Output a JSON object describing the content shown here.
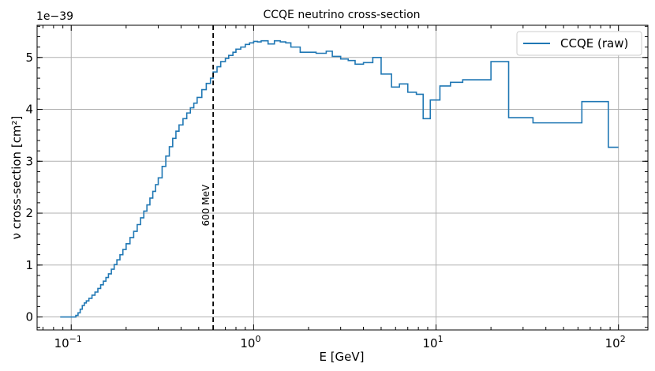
{
  "chart_data": {
    "type": "line",
    "title": "CCQE neutrino cross-section",
    "xlabel": "E [GeV]",
    "ylabel": "ν cross-section [cm²]",
    "x_scale": "log",
    "xlim": [
      0.065,
      145
    ],
    "ylim": [
      -2.5e-40,
      5.62e-39
    ],
    "offset_label": "1e−39",
    "grid": true,
    "x_ticks": [
      {
        "value": 0.1,
        "base": "10",
        "exp": "−1"
      },
      {
        "value": 1,
        "base": "10",
        "exp": "0"
      },
      {
        "value": 10,
        "base": "10",
        "exp": "1"
      },
      {
        "value": 100,
        "base": "10",
        "exp": "2"
      }
    ],
    "y_ticks": [
      {
        "value": 0,
        "label": "0"
      },
      {
        "value": 1e-39,
        "label": "1"
      },
      {
        "value": 2e-39,
        "label": "2"
      },
      {
        "value": 3e-39,
        "label": "3"
      },
      {
        "value": 4e-39,
        "label": "4"
      },
      {
        "value": 5e-39,
        "label": "5"
      }
    ],
    "legend": {
      "position": "top-right"
    },
    "series": [
      {
        "name": "CCQE (raw)",
        "color": "#1f77b4",
        "drawstyle": "steps-post",
        "x": [
          0.087,
          0.1,
          0.106,
          0.109,
          0.112,
          0.115,
          0.118,
          0.121,
          0.125,
          0.13,
          0.135,
          0.14,
          0.145,
          0.15,
          0.155,
          0.16,
          0.166,
          0.172,
          0.178,
          0.185,
          0.192,
          0.2,
          0.21,
          0.22,
          0.23,
          0.24,
          0.25,
          0.26,
          0.27,
          0.28,
          0.29,
          0.3,
          0.315,
          0.33,
          0.345,
          0.36,
          0.375,
          0.39,
          0.41,
          0.43,
          0.45,
          0.47,
          0.49,
          0.52,
          0.55,
          0.58,
          0.6,
          0.63,
          0.66,
          0.7,
          0.73,
          0.77,
          0.8,
          0.85,
          0.9,
          0.95,
          1.0,
          1.05,
          1.1,
          1.2,
          1.3,
          1.4,
          1.5,
          1.6,
          1.8,
          2.0,
          2.2,
          2.5,
          2.7,
          3.0,
          3.3,
          3.6,
          4.0,
          4.5,
          5.0,
          5.7,
          6.3,
          7.0,
          7.8,
          8.5,
          9.3,
          10.5,
          12.0,
          14.0,
          20.0,
          25.0,
          34.0,
          63.0,
          88.0,
          100.0
        ],
        "y": [
          0.0,
          0.0,
          3e-41,
          8e-41,
          1.5e-40,
          2.2e-40,
          2.7e-40,
          3.1e-40,
          3.6e-40,
          4.2e-40,
          4.8e-40,
          5.5e-40,
          6.2e-40,
          6.9e-40,
          7.6e-40,
          8.3e-40,
          9.2e-40,
          1.01e-39,
          1.1e-39,
          1.2e-39,
          1.3e-39,
          1.41e-39,
          1.53e-39,
          1.65e-39,
          1.78e-39,
          1.91e-39,
          2.04e-39,
          2.16e-39,
          2.29e-39,
          2.42e-39,
          2.55e-39,
          2.68e-39,
          2.9e-39,
          3.1e-39,
          3.28e-39,
          3.44e-39,
          3.58e-39,
          3.7e-39,
          3.82e-39,
          3.93e-39,
          4.03e-39,
          4.12e-39,
          4.23e-39,
          4.38e-39,
          4.5e-39,
          4.6e-39,
          4.72e-39,
          4.82e-39,
          4.92e-39,
          4.98e-39,
          5.04e-39,
          5.1e-39,
          5.16e-39,
          5.2e-39,
          5.25e-39,
          5.28e-39,
          5.31e-39,
          5.3e-39,
          5.32e-39,
          5.26e-39,
          5.32e-39,
          5.3e-39,
          5.28e-39,
          5.2e-39,
          5.1e-39,
          5.1e-39,
          5.08e-39,
          5.12e-39,
          5.02e-39,
          4.97e-39,
          4.94e-39,
          4.87e-39,
          4.9e-39,
          5e-39,
          4.68e-39,
          4.43e-39,
          4.49e-39,
          4.33e-39,
          4.29e-39,
          3.82e-39,
          4.18e-39,
          4.45e-39,
          4.52e-39,
          4.57e-39,
          4.92e-39,
          3.84e-39,
          3.74e-39,
          4.15e-39,
          3.27e-39,
          3.27e-39
        ]
      }
    ],
    "annotations": [
      {
        "type": "vline",
        "x": 0.6,
        "style": "dashed",
        "color": "#000000",
        "label": "600 MeV",
        "label_y": 2.15e-39
      }
    ]
  }
}
